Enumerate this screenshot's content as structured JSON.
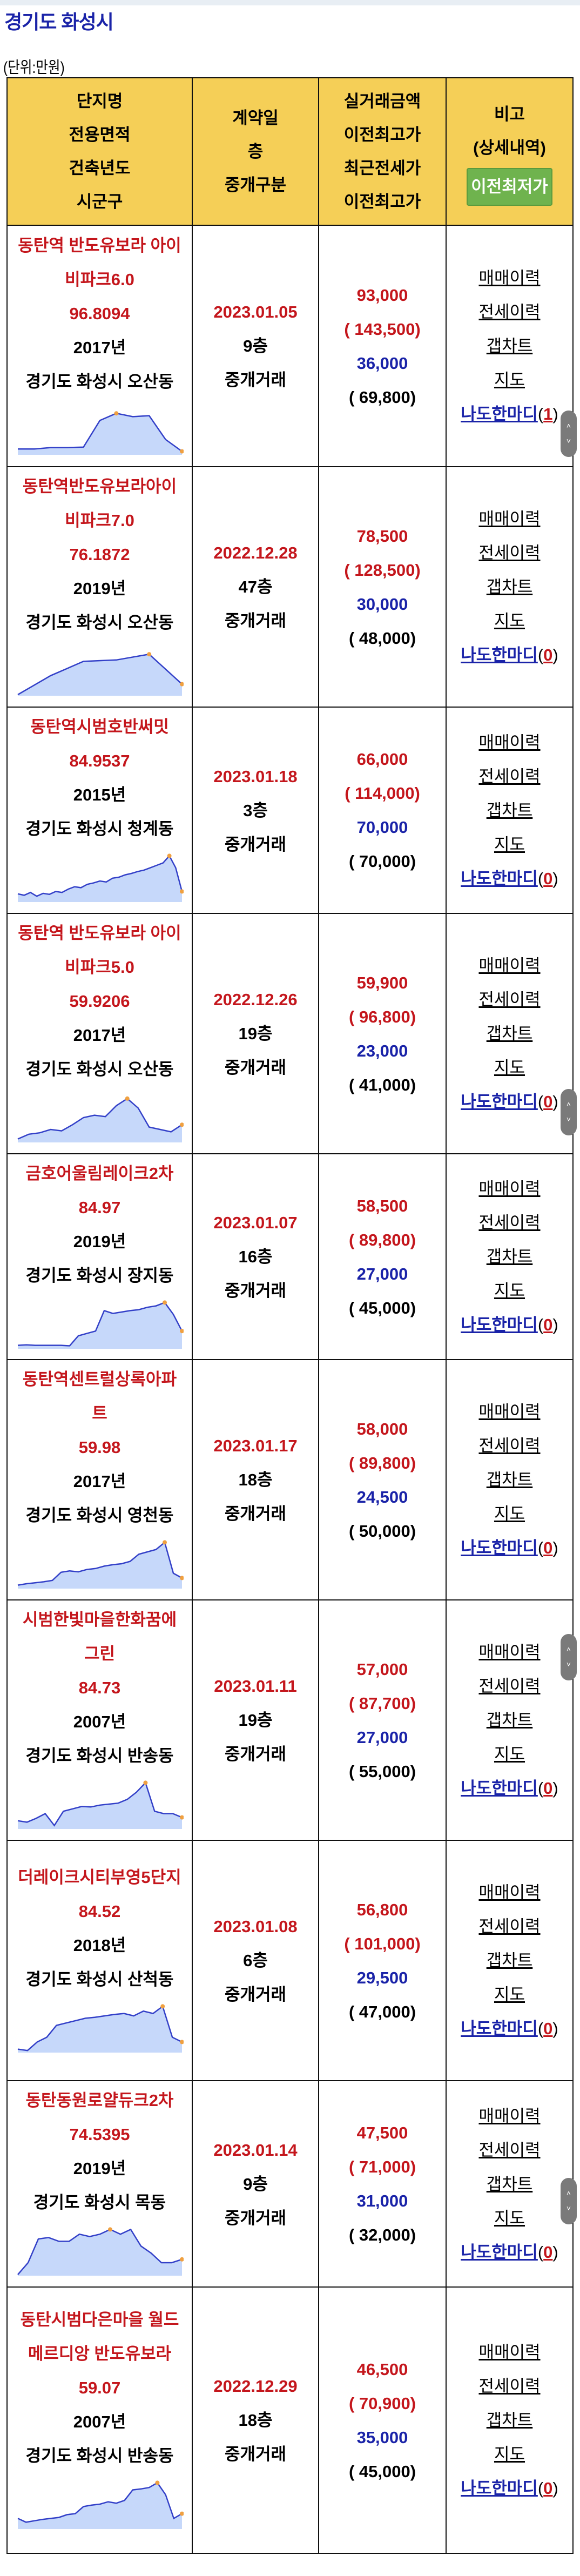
{
  "header": {
    "title": "경기도 화성시",
    "unit_label": "(단위:만원)"
  },
  "table": {
    "columns": {
      "c1": [
        "단지명",
        "전용면적",
        "건축년도",
        "시군구"
      ],
      "c2": [
        "계약일",
        "층",
        "중개구분"
      ],
      "c3": [
        "실거래금액",
        "이전최고가",
        "최근전세가",
        "이전최고가"
      ],
      "c4_line1": "비고",
      "c4_line2": "(상세내역)",
      "c4_button": "이전최저가"
    },
    "links": {
      "sale_history": "매매이력",
      "jeonse_history": "전세이력",
      "gap_chart": "갭차트",
      "map": "지도",
      "nado": "나도한마디"
    },
    "rows": [
      {
        "name": "동탄역 반도유보라 아이비파크6.0",
        "area": "96.8094",
        "year": "2017년",
        "location": "경기도 화성시 오산동",
        "date": "2023.01.05",
        "floor": "9층",
        "type": "중개거래",
        "price": "93,000",
        "prev_high": "( 143,500)",
        "jeonse": "36,000",
        "jeonse_prev_high": "( 69,800)",
        "nado_count": "1",
        "trend": [
          10,
          10,
          13,
          13,
          14,
          70,
          85,
          78,
          80,
          30,
          5
        ]
      },
      {
        "name": "동탄역반도유보라아이비파크7.0",
        "area": "76.1872",
        "year": "2019년",
        "location": "경기도 화성시 오산동",
        "date": "2022.12.28",
        "floor": "47층",
        "type": "중개거래",
        "price": "78,500",
        "prev_high": "( 128,500)",
        "jeonse": "30,000",
        "jeonse_prev_high": "( 48,000)",
        "nado_count": "0",
        "trend": [
          0,
          40,
          70,
          73,
          85,
          22
        ]
      },
      {
        "name": "동탄역시범호반써밋",
        "area": "84.9537",
        "year": "2015년",
        "location": "경기도 화성시 청계동",
        "date": "2023.01.18",
        "floor": "3층",
        "type": "중개거래",
        "price": "66,000",
        "prev_high": "( 114,000)",
        "jeonse": "70,000",
        "jeonse_prev_high": "( 70,000)",
        "nado_count": "0",
        "trend": [
          15,
          12,
          18,
          10,
          16,
          14,
          20,
          18,
          25,
          30,
          28,
          35,
          38,
          42,
          40,
          48,
          50,
          55,
          58,
          62,
          65,
          70,
          75,
          80,
          95,
          70,
          20
        ]
      },
      {
        "name": "동탄역 반도유보라 아이비파크5.0",
        "area": "59.9206",
        "year": "2017년",
        "location": "경기도 화성시 오산동",
        "date": "2022.12.26",
        "floor": "19층",
        "type": "중개거래",
        "price": "59,900",
        "prev_high": "( 96,800)",
        "jeonse": "23,000",
        "jeonse_prev_high": "( 41,000)",
        "nado_count": "0",
        "trend": [
          5,
          15,
          18,
          25,
          22,
          35,
          50,
          55,
          52,
          75,
          90,
          70,
          30,
          25,
          20,
          35
        ]
      },
      {
        "name": "금호어울림레이크2차",
        "area": "84.97",
        "year": "2019년",
        "location": "경기도 화성시 장지동",
        "date": "2023.01.07",
        "floor": "16층",
        "type": "중개거래",
        "price": "58,500",
        "prev_high": "( 89,800)",
        "jeonse": "27,000",
        "jeonse_prev_high": "( 45,000)",
        "nado_count": "0",
        "trend": [
          5,
          6,
          5,
          5,
          5,
          5,
          4,
          25,
          30,
          35,
          78,
          72,
          75,
          78,
          80,
          85,
          88,
          95,
          70,
          35
        ]
      },
      {
        "name": "동탄역센트럴상록아파트",
        "area": "59.98",
        "year": "2017년",
        "location": "경기도 화성시 영천동",
        "date": "2023.01.17",
        "floor": "18층",
        "type": "중개거래",
        "price": "58,000",
        "prev_high": "( 89,800)",
        "jeonse": "24,500",
        "jeonse_prev_high": "( 50,000)",
        "nado_count": "0",
        "trend": [
          5,
          8,
          10,
          12,
          15,
          32,
          35,
          33,
          38,
          40,
          45,
          48,
          50,
          55,
          70,
          75,
          80,
          95,
          30,
          20
        ]
      },
      {
        "name": "시범한빛마을한화꿈에그린",
        "area": "84.73",
        "year": "2007년",
        "location": "경기도 화성시 반송동",
        "date": "2023.01.11",
        "floor": "19층",
        "type": "중개거래",
        "price": "57,000",
        "prev_high": "( 87,700)",
        "jeonse": "27,000",
        "jeonse_prev_high": "( 55,000)",
        "nado_count": "0",
        "trend": [
          15,
          12,
          20,
          30,
          5,
          35,
          40,
          45,
          44,
          48,
          50,
          52,
          60,
          75,
          95,
          35,
          30,
          30,
          22
        ]
      },
      {
        "name": "더레이크시티부영5단지",
        "area": "84.52",
        "year": "2018년",
        "location": "경기도 화성시 산척동",
        "date": "2023.01.08",
        "floor": "6층",
        "type": "중개거래",
        "price": "56,800",
        "prev_high": "( 101,000)",
        "jeonse": "29,500",
        "jeonse_prev_high": "( 47,000)",
        "nado_count": "0",
        "trend": [
          5,
          2,
          20,
          30,
          55,
          60,
          65,
          70,
          72,
          75,
          78,
          80,
          75,
          85,
          80,
          95,
          30,
          20
        ]
      },
      {
        "name": "동탄동원로얄듀크2차",
        "area": "74.5395",
        "year": "2019년",
        "location": "경기도 화성시 목동",
        "date": "2023.01.14",
        "floor": "9층",
        "type": "중개거래",
        "price": "47,500",
        "prev_high": "( 71,000)",
        "jeonse": "31,000",
        "jeonse_prev_high": "( 32,000)",
        "nado_count": "0",
        "trend": [
          0,
          25,
          75,
          78,
          70,
          70,
          85,
          80,
          85,
          95,
          85,
          95,
          60,
          45,
          25,
          25,
          32
        ]
      },
      {
        "name": "동탄시범다은마을 월드메르디앙 반도유보라",
        "area": "59.07",
        "year": "2007년",
        "location": "경기도 화성시 반송동",
        "date": "2022.12.29",
        "floor": "18층",
        "type": "중개거래",
        "price": "46,500",
        "prev_high": "( 70,900)",
        "jeonse": "35,000",
        "jeonse_prev_high": "( 45,000)",
        "nado_count": "0",
        "trend": [
          20,
          12,
          15,
          18,
          20,
          22,
          28,
          30,
          45,
          48,
          50,
          55,
          52,
          58,
          80,
          82,
          85,
          95,
          70,
          20,
          30
        ]
      }
    ]
  },
  "colors": {
    "title": "#1a23a8",
    "header_bg": "#f5cf57",
    "button_bg": "#6fb34e",
    "price_red": "#c4161c",
    "jeonse_blue": "#1a23a8",
    "chart_line": "#3340c8",
    "chart_fill": "#c6d8fa"
  }
}
